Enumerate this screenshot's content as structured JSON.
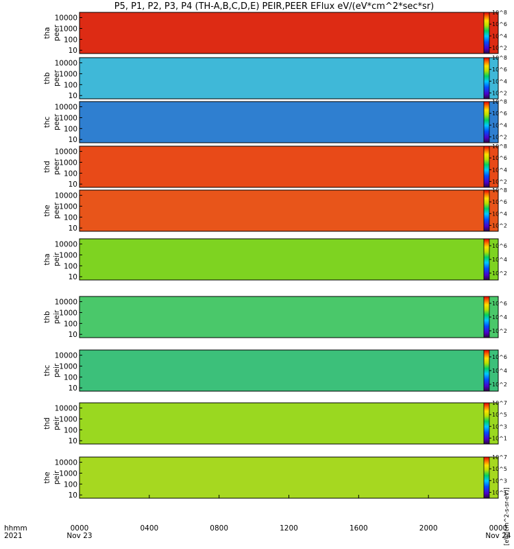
{
  "chart_data": {
    "type": "heatmap",
    "title": "P5, P1, P2, P3, P4 (TH-A,B,C,D,E) PEIR,PEER EFlux eV/(eV*cm^2*sec*sr)",
    "time_axis": {
      "label_line1": "hhmm",
      "label_line2": "2021",
      "ticks": [
        {
          "time": "0000",
          "date": "Nov 23",
          "hour": 0
        },
        {
          "time": "0400",
          "date": "",
          "hour": 4
        },
        {
          "time": "0800",
          "date": "",
          "hour": 8
        },
        {
          "time": "1200",
          "date": "",
          "hour": 12
        },
        {
          "time": "1600",
          "date": "",
          "hour": 16
        },
        {
          "time": "2000",
          "date": "",
          "hour": 20
        },
        {
          "time": "0000",
          "date": "Nov 24",
          "hour": 24
        }
      ],
      "range_hours": [
        0,
        24
      ]
    },
    "y_scale": "log",
    "y_ticks": [
      "10000",
      "1000",
      "100",
      "10"
    ],
    "y_range_eV": [
      5,
      30000
    ],
    "colorbar_label": "[eV/(cm^2-s-sr-eV)]",
    "panels": [
      {
        "line1": "tha",
        "line2": "peer",
        "cbar_max_exp": 8,
        "cbar_labels": [
          "10^8",
          "10^6",
          "10^4",
          "10^2"
        ],
        "cbar_exps": [
          8,
          6,
          4,
          2
        ],
        "cbar_min_exp": 1,
        "fill_color": "#dd2b14"
      },
      {
        "line1": "thb",
        "line2": "peer",
        "cbar_max_exp": 8,
        "cbar_labels": [
          "10^8",
          "10^6",
          "10^4",
          "10^2"
        ],
        "cbar_exps": [
          8,
          6,
          4,
          2
        ],
        "cbar_min_exp": 1,
        "fill_color": "#3fb8d8"
      },
      {
        "line1": "thc",
        "line2": "peer",
        "cbar_max_exp": 8,
        "cbar_labels": [
          "10^8",
          "10^6",
          "10^4",
          "10^2"
        ],
        "cbar_exps": [
          8,
          6,
          4,
          2
        ],
        "cbar_min_exp": 1,
        "fill_color": "#2f7fd0"
      },
      {
        "line1": "thd",
        "line2": "peer",
        "cbar_max_exp": 8,
        "cbar_labels": [
          "10^8",
          "10^6",
          "10^4",
          "10^2"
        ],
        "cbar_exps": [
          8,
          6,
          4,
          2
        ],
        "cbar_min_exp": 1,
        "fill_color": "#e84a18"
      },
      {
        "line1": "the",
        "line2": "peer",
        "cbar_max_exp": 8,
        "cbar_labels": [
          "10^8",
          "10^6",
          "10^4",
          "10^2"
        ],
        "cbar_exps": [
          8,
          6,
          4,
          2
        ],
        "cbar_min_exp": 1,
        "fill_color": "#e8551a"
      },
      {
        "line1": "tha",
        "line2": "peir",
        "cbar_max_exp": 7,
        "cbar_labels": [
          "10^6",
          "10^4",
          "10^2"
        ],
        "cbar_exps": [
          6,
          4,
          2
        ],
        "cbar_min_exp": 1,
        "fill_color": "#7ed321"
      },
      {
        "line1": "thb",
        "line2": "peir",
        "cbar_max_exp": 7,
        "cbar_labels": [
          "10^6",
          "10^4",
          "10^2"
        ],
        "cbar_exps": [
          6,
          4,
          2
        ],
        "cbar_min_exp": 1,
        "fill_color": "#4ac86a"
      },
      {
        "line1": "thc",
        "line2": "peir",
        "cbar_max_exp": 7,
        "cbar_labels": [
          "10^6",
          "10^4",
          "10^2"
        ],
        "cbar_exps": [
          6,
          4,
          2
        ],
        "cbar_min_exp": 1,
        "fill_color": "#3cc07a"
      },
      {
        "line1": "thd",
        "line2": "peir",
        "cbar_max_exp": 7,
        "cbar_labels": [
          "10^7",
          "10^5",
          "10^3",
          "10^1"
        ],
        "cbar_exps": [
          7,
          5,
          3,
          1
        ],
        "cbar_min_exp": 0,
        "fill_color": "#9ad820"
      },
      {
        "line1": "the",
        "line2": "peir",
        "cbar_max_exp": 7,
        "cbar_labels": [
          "10^7",
          "10^5",
          "10^3",
          "10^1"
        ],
        "cbar_exps": [
          7,
          5,
          3,
          1
        ],
        "cbar_min_exp": 0,
        "fill_color": "#a6d820"
      }
    ]
  }
}
